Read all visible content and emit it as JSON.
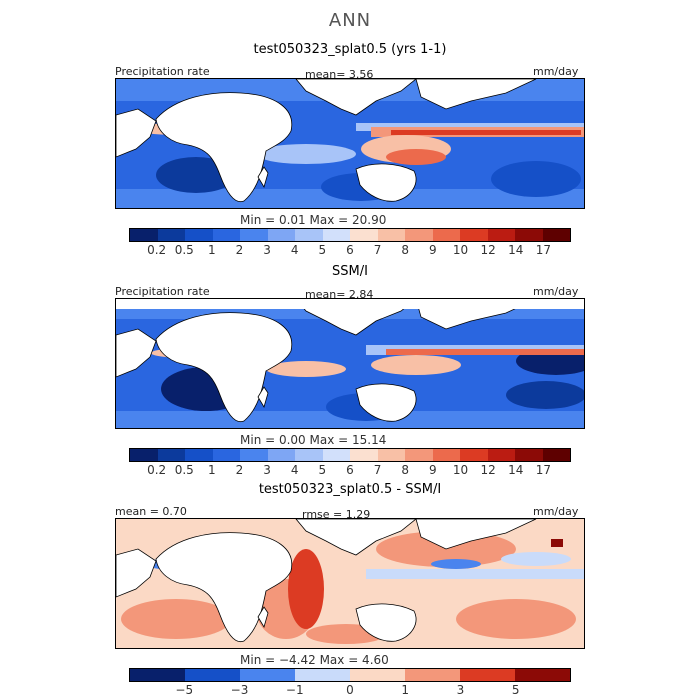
{
  "header": {
    "season": "ANN"
  },
  "panels": [
    {
      "title": "test050323_splat0.5 (yrs 1-1)",
      "left_label": "Precipitation rate",
      "mid_label": "mean=   3.56",
      "right_label": "mm/day",
      "minmax": "Min =    0.01  Max =  20.90",
      "cbar_labels": [
        "0.2",
        "0.5",
        "1",
        "2",
        "3",
        "4",
        "5",
        "6",
        "7",
        "8",
        "9",
        "10",
        "12",
        "14",
        "17"
      ]
    },
    {
      "title": "SSM/I",
      "left_label": "Precipitation rate",
      "mid_label": "mean=   2.84",
      "right_label": "mm/day",
      "minmax": "Min =    0.00  Max =  15.14",
      "cbar_labels": [
        "0.2",
        "0.5",
        "1",
        "2",
        "3",
        "4",
        "5",
        "6",
        "7",
        "8",
        "9",
        "10",
        "12",
        "14",
        "17"
      ]
    },
    {
      "title": "test050323_splat0.5 - SSM/I",
      "left_label": "mean =   0.70",
      "mid_label": "rmse =    1.29",
      "right_label": "mm/day",
      "minmax": "Min =  −4.42  Max =    4.60",
      "cbar_labels": [
        "−5",
        "−3",
        "−1",
        "0",
        "1",
        "3",
        "5"
      ]
    }
  ],
  "chart_data": [
    {
      "type": "heatmap",
      "title": "test050323_splat0.5 (yrs 1-1)",
      "variable": "Precipitation rate",
      "units": "mm/day",
      "mean": 3.56,
      "min": 0.01,
      "max": 20.9,
      "levels": [
        0.2,
        0.5,
        1,
        2,
        3,
        4,
        5,
        6,
        7,
        8,
        9,
        10,
        12,
        14,
        17
      ],
      "colors": [
        "#08206b",
        "#0c3a9c",
        "#1550c8",
        "#2a66e0",
        "#4a84ee",
        "#7ea6f4",
        "#a8c4f8",
        "#d2e0fb",
        "#fbe0d0",
        "#f8c0a6",
        "#f3977a",
        "#ec6a4c",
        "#dc3b23",
        "#bb1c12",
        "#8c0a06",
        "#5e0000"
      ]
    },
    {
      "type": "heatmap",
      "title": "SSM/I",
      "variable": "Precipitation rate",
      "units": "mm/day",
      "mean": 2.84,
      "min": 0.0,
      "max": 15.14,
      "levels": [
        0.2,
        0.5,
        1,
        2,
        3,
        4,
        5,
        6,
        7,
        8,
        9,
        10,
        12,
        14,
        17
      ],
      "colors": [
        "#08206b",
        "#0c3a9c",
        "#1550c8",
        "#2a66e0",
        "#4a84ee",
        "#7ea6f4",
        "#a8c4f8",
        "#d2e0fb",
        "#fbe0d0",
        "#f8c0a6",
        "#f3977a",
        "#ec6a4c",
        "#dc3b23",
        "#bb1c12",
        "#8c0a06",
        "#5e0000"
      ]
    },
    {
      "type": "heatmap",
      "title": "test050323_splat0.5 - SSM/I",
      "units": "mm/day",
      "mean": 0.7,
      "rmse": 1.29,
      "min": -4.42,
      "max": 4.6,
      "levels": [
        -5,
        -3,
        -1,
        0,
        1,
        3,
        5
      ],
      "colors": [
        "#08206b",
        "#1550c8",
        "#4a84ee",
        "#c9dbfa",
        "#fbd9c5",
        "#f3977a",
        "#dc3b23",
        "#8c0a06"
      ]
    }
  ]
}
